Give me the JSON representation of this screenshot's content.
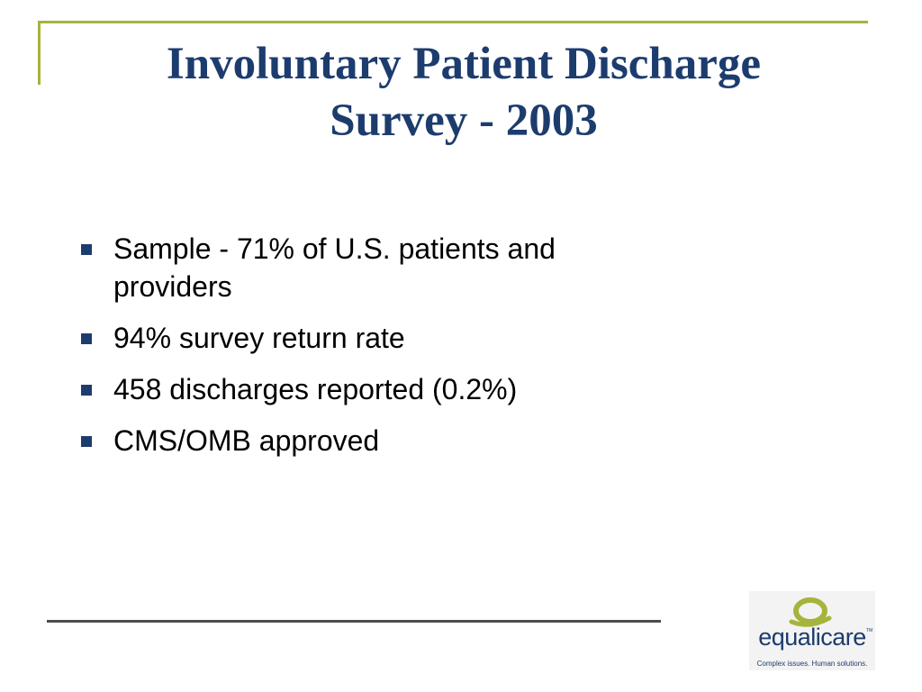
{
  "slide": {
    "title_line1": "Involuntary Patient Discharge",
    "title_line2": "Survey - 2003",
    "bullets": [
      {
        "line1": "Sample - 71% of U.S. patients and",
        "line2": "providers"
      },
      {
        "line1": "94% survey return rate"
      },
      {
        "line1": "458 discharges reported (0.2%)"
      },
      {
        "line1": "CMS/OMB approved"
      }
    ]
  },
  "logo": {
    "name": "equalicare",
    "trademark": "TM",
    "tagline": "Complex issues. Human solutions.",
    "icon": "equalicare-logo-mark"
  },
  "colors": {
    "title": "#1d3c6e",
    "accent": "#a6b43c",
    "footer_line": "#4d4d4d"
  }
}
